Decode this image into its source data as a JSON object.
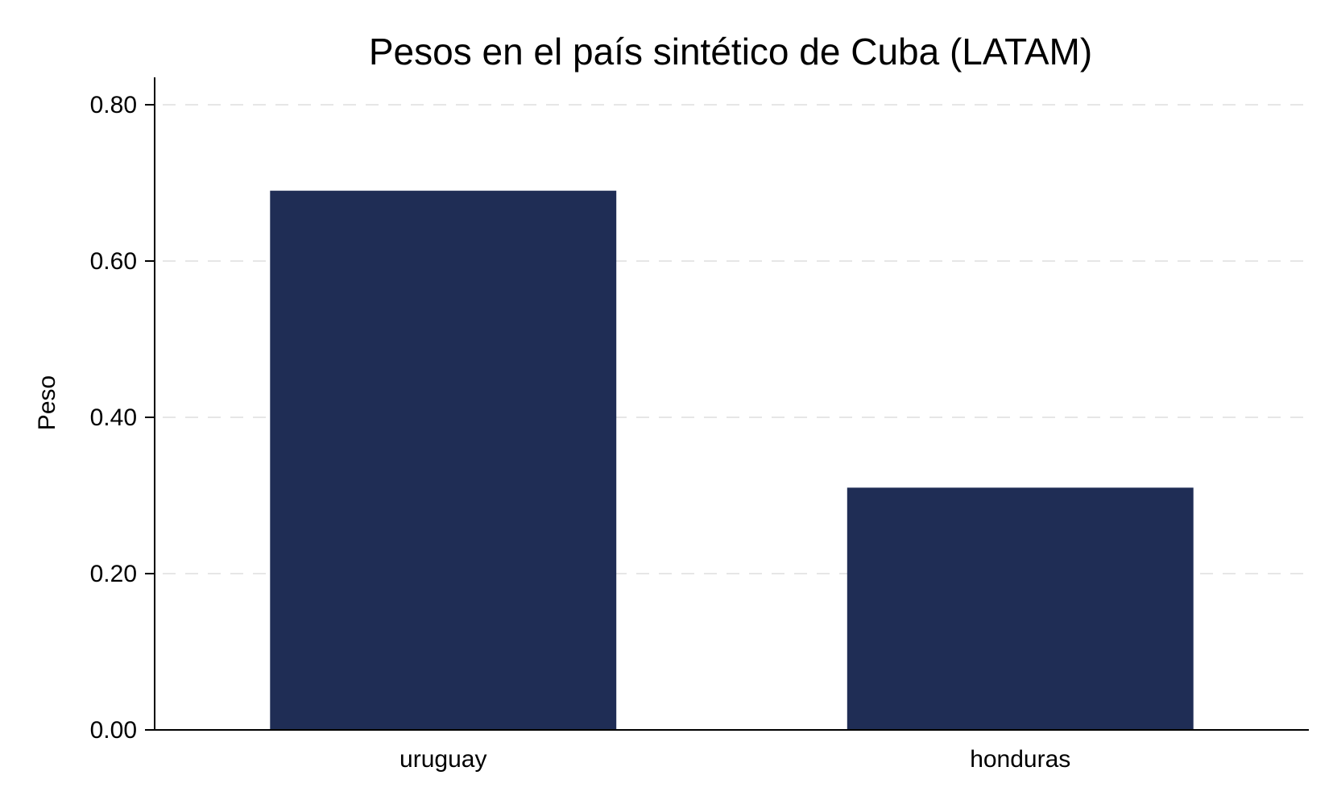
{
  "chart_data": {
    "type": "bar",
    "title": "Pesos en el país sintético de Cuba (LATAM)",
    "xlabel": "",
    "ylabel": "Peso",
    "categories": [
      "uruguay",
      "honduras"
    ],
    "values": [
      0.69,
      0.31
    ],
    "ylim": [
      0,
      0.8
    ],
    "yticks": [
      0.0,
      0.2,
      0.4,
      0.6,
      0.8
    ],
    "ytick_labels": [
      "0.00",
      "0.20",
      "0.40",
      "0.60",
      "0.80"
    ],
    "grid": "horizontal dashed",
    "legend": "none",
    "bar_color": "#1f2d55"
  }
}
